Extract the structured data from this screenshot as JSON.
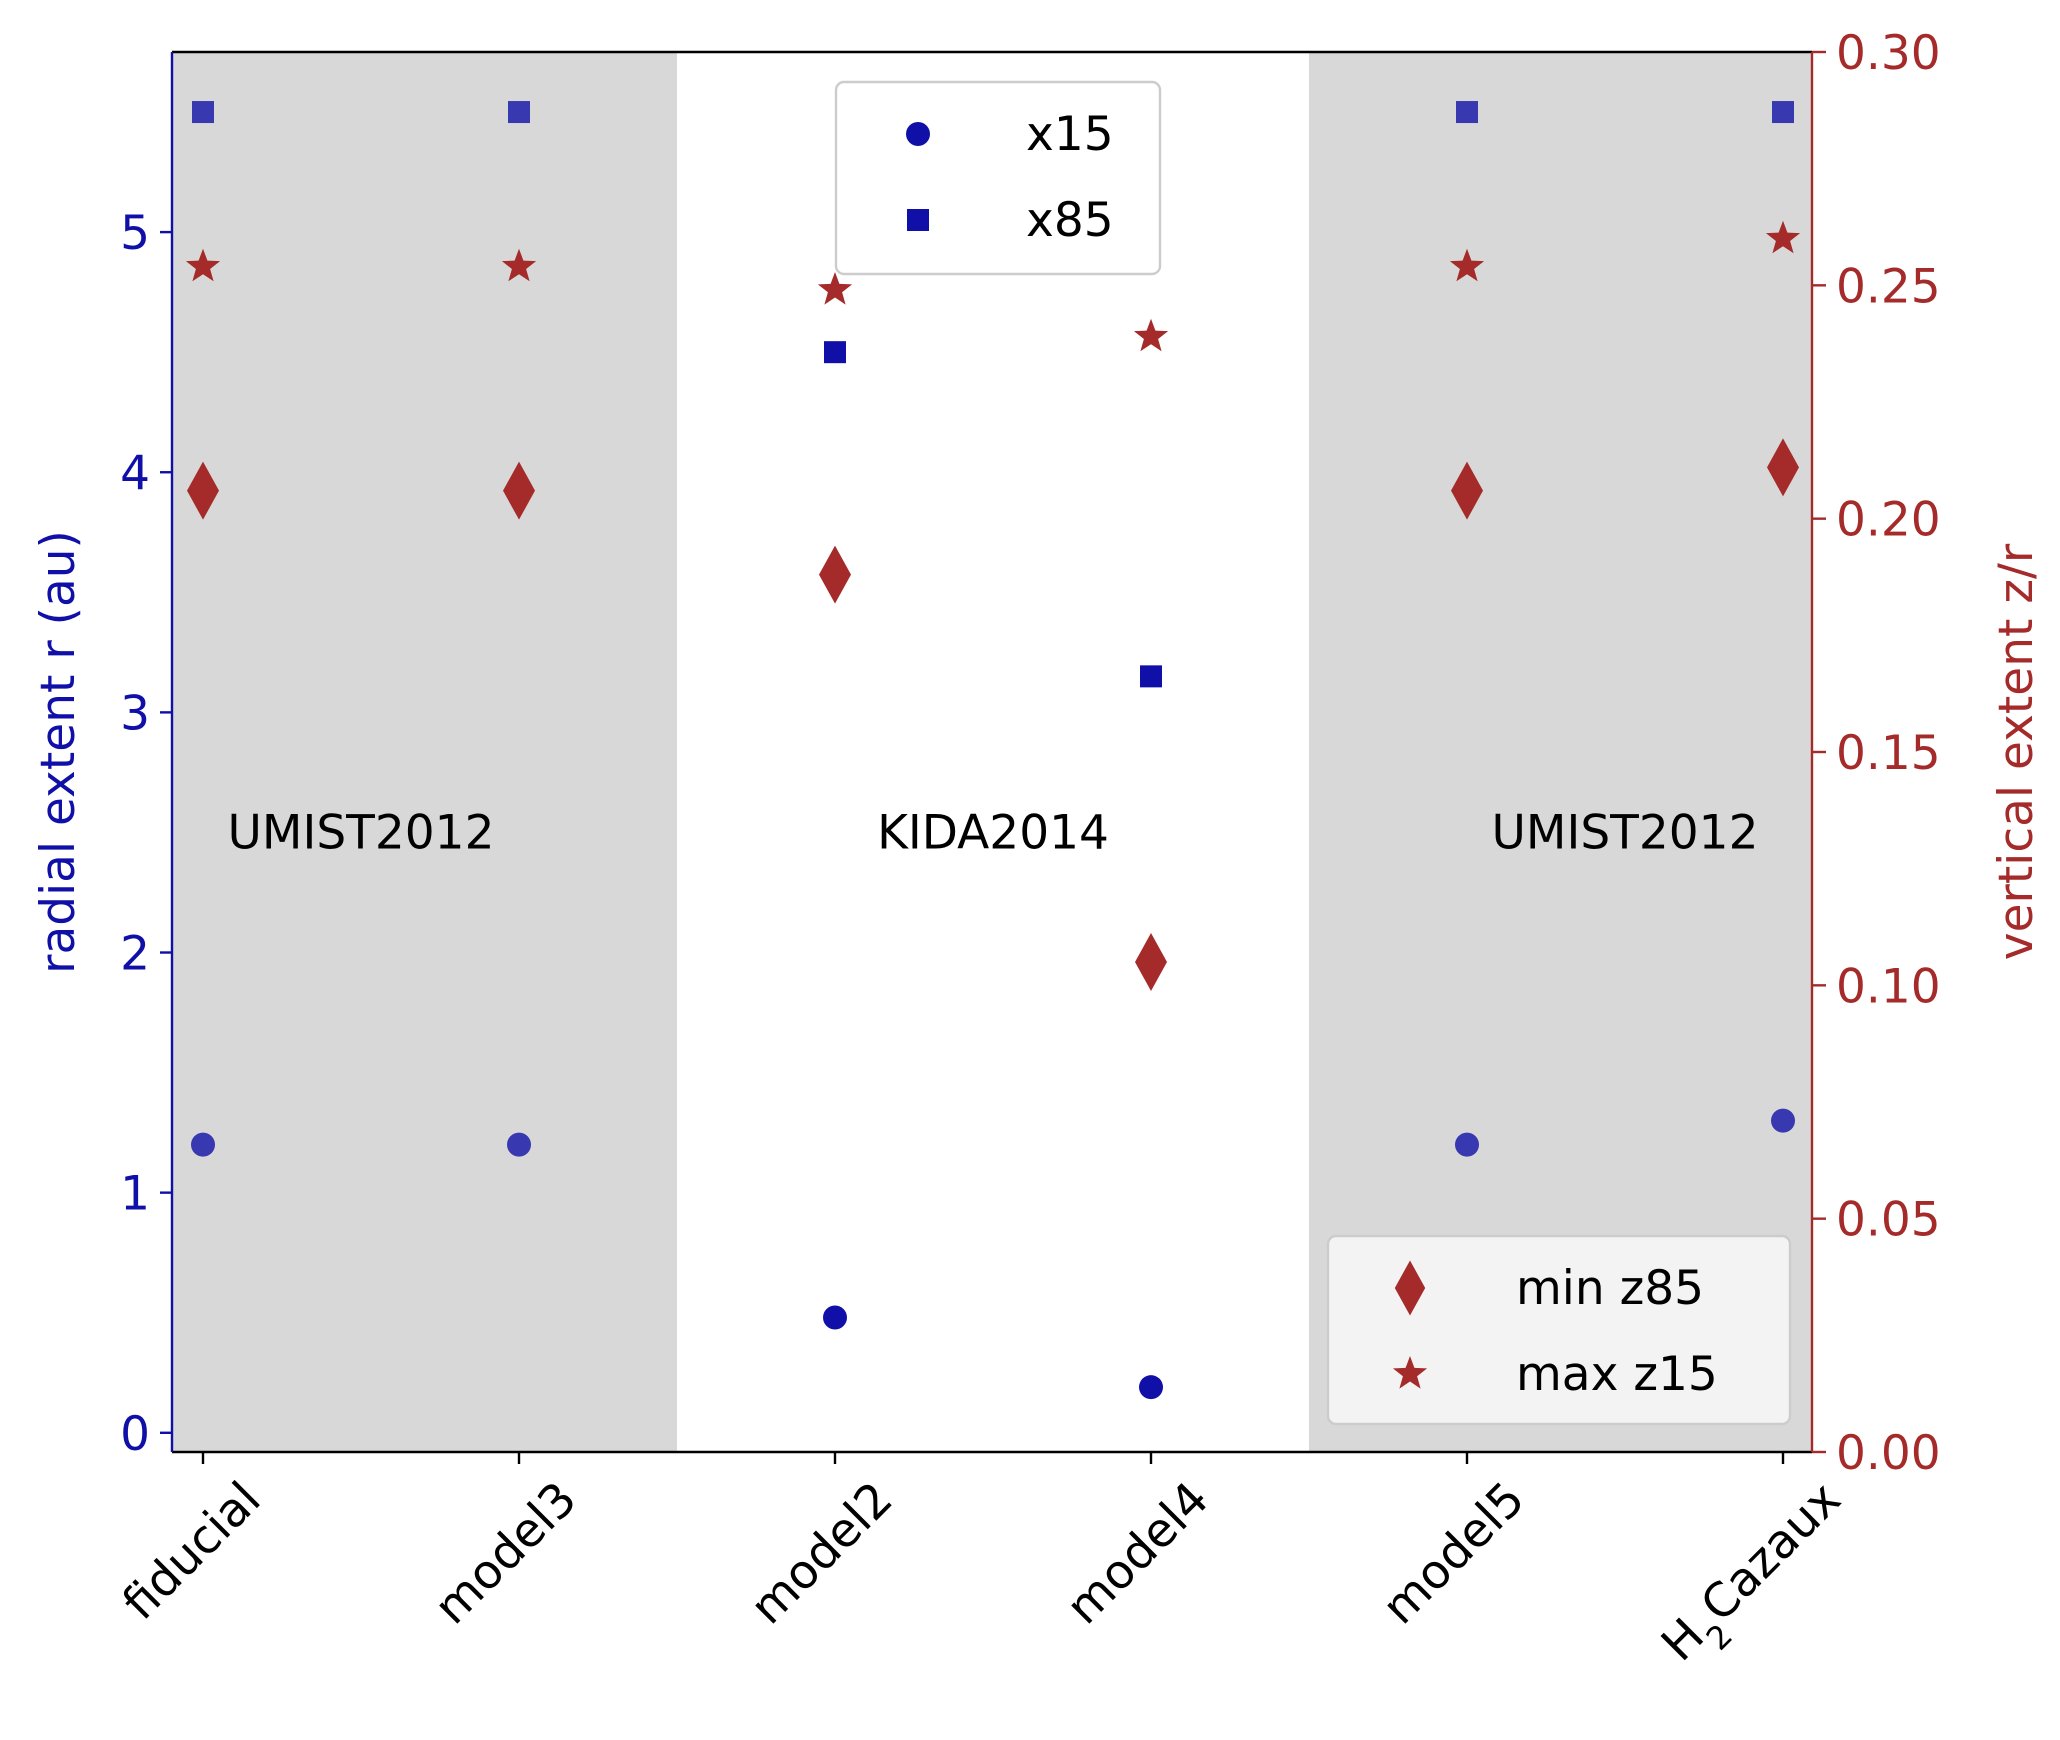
{
  "chart_data": {
    "type": "scatter",
    "categories": [
      "fiducial",
      "model3",
      "model2",
      "model4",
      "model5",
      "H2Cazaux"
    ],
    "category_label_parts": [
      [
        "fiducial"
      ],
      [
        "model3"
      ],
      [
        "model2"
      ],
      [
        "model4"
      ],
      [
        "model5"
      ],
      [
        "H",
        "2",
        "Cazaux"
      ]
    ],
    "left_axis": {
      "label": "radial extent r (au)",
      "ylim": [
        -0.08,
        5.75
      ],
      "ticks": [
        0,
        1,
        2,
        3,
        4,
        5
      ],
      "tick_labels": [
        "0",
        "1",
        "2",
        "3",
        "4",
        "5"
      ],
      "color": "#1010a8"
    },
    "right_axis": {
      "label": "vertical extent z/r",
      "ylim": [
        0.0,
        0.3
      ],
      "ticks": [
        0.0,
        0.05,
        0.1,
        0.15,
        0.2,
        0.25,
        0.3
      ],
      "tick_labels": [
        "0.00",
        "0.05",
        "0.10",
        "0.15",
        "0.20",
        "0.25",
        "0.30"
      ],
      "color": "#a52a2a"
    },
    "series": [
      {
        "name": "x15",
        "axis": "left",
        "marker": "circle",
        "color": "#1010a8",
        "values": [
          1.2,
          1.2,
          0.48,
          0.19,
          1.2,
          1.3
        ]
      },
      {
        "name": "x85",
        "axis": "left",
        "marker": "square",
        "color": "#1010a8",
        "values": [
          5.5,
          5.5,
          4.5,
          3.15,
          5.5,
          5.5
        ]
      },
      {
        "name": "min z85",
        "axis": "right",
        "marker": "diamond",
        "color": "#a52a2a",
        "values": [
          0.206,
          0.206,
          0.188,
          0.105,
          0.206,
          0.211
        ]
      },
      {
        "name": "max z15",
        "axis": "right",
        "marker": "star",
        "color": "#a52a2a",
        "values": [
          0.254,
          0.254,
          0.249,
          0.239,
          0.254,
          0.26
        ]
      }
    ],
    "shaded_regions": [
      {
        "label": "UMIST2012",
        "from_category": 0,
        "to_category": 1,
        "color": "#d8d8d8"
      },
      {
        "label": "KIDA2014",
        "from_category": 2,
        "to_category": 3,
        "color": "#ffffff"
      },
      {
        "label": "UMIST2012",
        "from_category": 4,
        "to_category": 5,
        "color": "#d8d8d8"
      }
    ],
    "region_label_value": 2.5,
    "legends": [
      {
        "position": "top-center",
        "entries": [
          "x15",
          "x85"
        ]
      },
      {
        "position": "bottom-right",
        "entries": [
          "min z85",
          "max z15"
        ]
      }
    ]
  }
}
